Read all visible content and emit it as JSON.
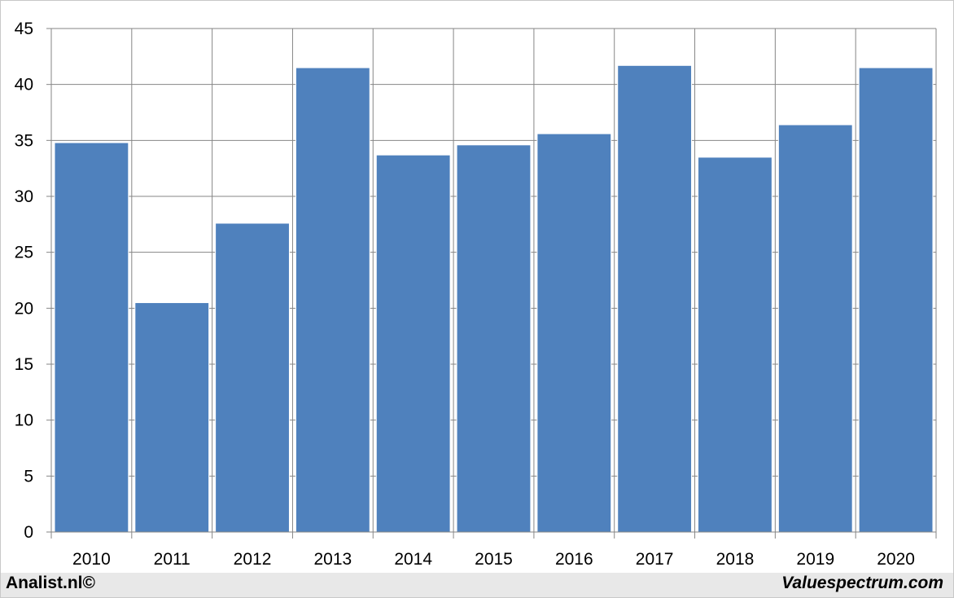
{
  "chart_data": {
    "type": "bar",
    "categories": [
      "2010",
      "2011",
      "2012",
      "2013",
      "2014",
      "2015",
      "2016",
      "2017",
      "2018",
      "2019",
      "2020"
    ],
    "values": [
      34.8,
      20.5,
      27.6,
      41.5,
      33.7,
      34.6,
      35.6,
      41.7,
      33.5,
      36.4,
      41.5
    ],
    "ylim": [
      0,
      45
    ],
    "yticks": [
      0,
      5,
      10,
      15,
      20,
      25,
      30,
      35,
      40,
      45
    ],
    "grid": true,
    "bar_color": "#4f81bd",
    "title": "",
    "xlabel": "",
    "ylabel": ""
  },
  "footer": {
    "left": "Analist.nl©",
    "right": "Valuespectrum.com"
  }
}
